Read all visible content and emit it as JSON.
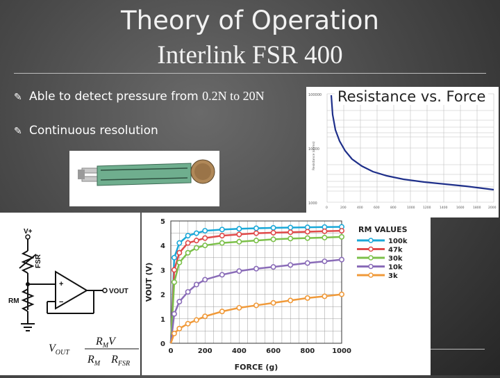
{
  "slide": {
    "title_line1": "Theory of Operation",
    "title_line2": "Interlink FSR 400",
    "bullets": [
      {
        "text_a": "Able to detect pressure from ",
        "text_b": "0.2N to 20N"
      },
      {
        "text_a": "Continuous resolution",
        "text_b": ""
      }
    ]
  },
  "resistance_graph": {
    "title": "Resistance vs. Force",
    "y_ticks": [
      "100000",
      "10000",
      "1000"
    ],
    "y_label": "Resistance (ohms)",
    "x_ticks": [
      "0",
      "200",
      "400",
      "600",
      "800",
      "1000",
      "1200",
      "1400",
      "1600",
      "1800",
      "2000"
    ],
    "colors": {
      "curve": "#1e2f8a"
    }
  },
  "circuit": {
    "labels": {
      "vplus": "V+",
      "fsr": "FSR",
      "rm": "RM",
      "vout": "VOUT",
      "plus": "+",
      "minus": "−"
    },
    "formula": {
      "lhs": "V",
      "lhs_sub": "OUT",
      "num_a": "R",
      "num_sub": "M",
      "num_b": "V",
      "den_a": "R",
      "den_sub_a": "M",
      "den_b": "R",
      "den_sub_b": "FSR"
    }
  },
  "vout_chart": {
    "chart_data": {
      "type": "line",
      "xlabel": "FORCE (g)",
      "ylabel": "VOUT (V)",
      "x_ticks": [
        0,
        200,
        400,
        600,
        800,
        1000
      ],
      "y_ticks": [
        0,
        1,
        2,
        3,
        4,
        5
      ],
      "xlim": [
        0,
        1000
      ],
      "ylim": [
        0,
        5
      ],
      "legend_title": "RM VALUES",
      "legend_position": "top-right",
      "grid": true,
      "x": [
        20,
        50,
        100,
        150,
        200,
        300,
        400,
        500,
        600,
        700,
        800,
        900,
        1000
      ],
      "series": [
        {
          "name": "100k",
          "color": "#1aa8d8",
          "values": [
            3.5,
            4.1,
            4.4,
            4.5,
            4.6,
            4.65,
            4.68,
            4.7,
            4.72,
            4.73,
            4.74,
            4.75,
            4.76
          ]
        },
        {
          "name": "47k",
          "color": "#e04a4a",
          "values": [
            3.0,
            3.7,
            4.1,
            4.2,
            4.3,
            4.4,
            4.45,
            4.5,
            4.52,
            4.54,
            4.56,
            4.58,
            4.6
          ]
        },
        {
          "name": "30k",
          "color": "#7cc04a",
          "values": [
            2.5,
            3.3,
            3.7,
            3.9,
            4.0,
            4.1,
            4.15,
            4.2,
            4.25,
            4.28,
            4.3,
            4.32,
            4.35
          ]
        },
        {
          "name": "10k",
          "color": "#8a6cb8",
          "values": [
            1.2,
            1.7,
            2.1,
            2.4,
            2.6,
            2.8,
            2.95,
            3.05,
            3.12,
            3.2,
            3.28,
            3.35,
            3.42
          ]
        },
        {
          "name": "3k",
          "color": "#f09a3a",
          "values": [
            0.4,
            0.6,
            0.8,
            0.95,
            1.1,
            1.3,
            1.45,
            1.55,
            1.65,
            1.75,
            1.85,
            1.92,
            2.0
          ]
        }
      ]
    }
  },
  "colors": {
    "background": "#4a4a4a",
    "text": "#ffffff"
  }
}
